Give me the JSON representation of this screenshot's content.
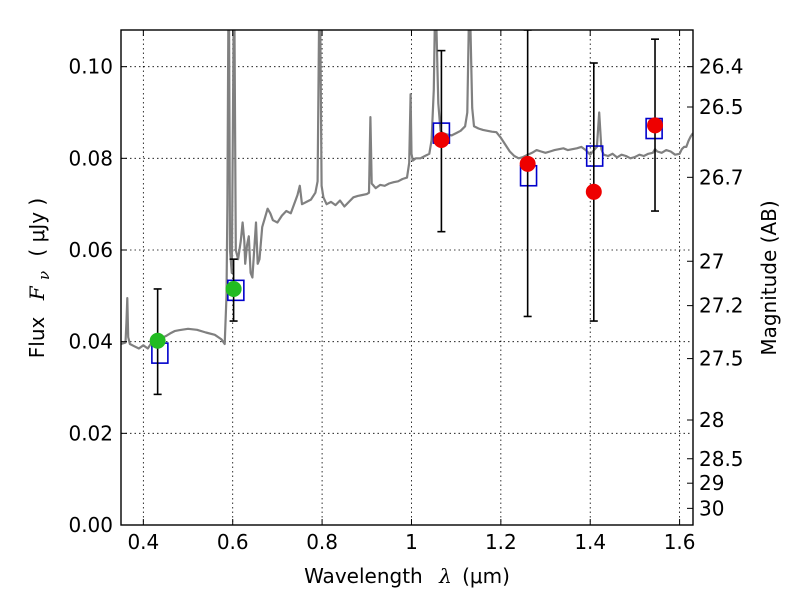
{
  "chart_data": {
    "type": "scatter",
    "xlabel": "Wavelength",
    "xlabel_math": "λ",
    "xlabel_unit": "(μm)",
    "ylabel": "Flux",
    "ylabel_math": "F",
    "ylabel_sub": "ν",
    "ylabel_unit": "( μJy )",
    "y2label": "Magnitude (AB)",
    "xlim": [
      0.35,
      1.63
    ],
    "ylim": [
      0.0,
      0.108
    ],
    "grid": true,
    "x_ticks": [
      0.4,
      0.6,
      0.8,
      1.0,
      1.2,
      1.4,
      1.6
    ],
    "x_tick_labels": [
      "0.4",
      "0.6",
      "0.8",
      "1",
      "1.2",
      "1.4",
      "1.6"
    ],
    "y_ticks": [
      0.0,
      0.02,
      0.04,
      0.06,
      0.08,
      0.1
    ],
    "y_tick_labels": [
      "0.00",
      "0.02",
      "0.04",
      "0.06",
      "0.08",
      "0.10"
    ],
    "y2_ticks": [
      {
        "label": "26.4",
        "mag": 26.4
      },
      {
        "label": "26.5",
        "mag": 26.5
      },
      {
        "label": "26.7",
        "mag": 26.7
      },
      {
        "label": "27",
        "mag": 27.0
      },
      {
        "label": "27.2",
        "mag": 27.2
      },
      {
        "label": "27.5",
        "mag": 27.5
      },
      {
        "label": "28",
        "mag": 28.0
      },
      {
        "label": "28.5",
        "mag": 28.5
      },
      {
        "label": "29",
        "mag": 29.0
      },
      {
        "label": "30",
        "mag": 30.0
      }
    ],
    "colors": {
      "spectrum": "#808080",
      "model_box": "#0000cc",
      "green_point": "#22bb22",
      "red_point": "#ee0000",
      "errorbar": "#000000",
      "grid": "#000000"
    },
    "series": [
      {
        "kind": "spectrum",
        "points": [
          [
            0.35,
            0.0395
          ],
          [
            0.36,
            0.0398
          ],
          [
            0.362,
            0.044
          ],
          [
            0.364,
            0.0495
          ],
          [
            0.366,
            0.041
          ],
          [
            0.37,
            0.0395
          ],
          [
            0.38,
            0.039
          ],
          [
            0.39,
            0.0385
          ],
          [
            0.4,
            0.0392
          ],
          [
            0.41,
            0.0385
          ],
          [
            0.42,
            0.04
          ],
          [
            0.43,
            0.0405
          ],
          [
            0.44,
            0.0408
          ],
          [
            0.45,
            0.0412
          ],
          [
            0.46,
            0.0418
          ],
          [
            0.47,
            0.0423
          ],
          [
            0.48,
            0.0425
          ],
          [
            0.5,
            0.0428
          ],
          [
            0.52,
            0.0426
          ],
          [
            0.54,
            0.042
          ],
          [
            0.56,
            0.0415
          ],
          [
            0.575,
            0.0405
          ],
          [
            0.582,
            0.0395
          ],
          [
            0.586,
            0.05
          ],
          [
            0.588,
            0.07
          ],
          [
            0.59,
            0.108
          ],
          [
            0.592,
            0.108
          ],
          [
            0.594,
            0.06
          ],
          [
            0.598,
            0.055
          ],
          [
            0.602,
            0.108
          ],
          [
            0.604,
            0.108
          ],
          [
            0.607,
            0.06
          ],
          [
            0.612,
            0.058
          ],
          [
            0.618,
            0.062
          ],
          [
            0.622,
            0.066
          ],
          [
            0.626,
            0.062
          ],
          [
            0.628,
            0.057
          ],
          [
            0.632,
            0.061
          ],
          [
            0.636,
            0.063
          ],
          [
            0.64,
            0.055
          ],
          [
            0.644,
            0.054
          ],
          [
            0.648,
            0.06
          ],
          [
            0.652,
            0.066
          ],
          [
            0.656,
            0.057
          ],
          [
            0.66,
            0.058
          ],
          [
            0.666,
            0.065
          ],
          [
            0.672,
            0.067
          ],
          [
            0.678,
            0.069
          ],
          [
            0.684,
            0.068
          ],
          [
            0.69,
            0.0665
          ],
          [
            0.7,
            0.066
          ],
          [
            0.71,
            0.0675
          ],
          [
            0.72,
            0.0685
          ],
          [
            0.73,
            0.068
          ],
          [
            0.745,
            0.072
          ],
          [
            0.75,
            0.074
          ],
          [
            0.755,
            0.07
          ],
          [
            0.765,
            0.0705
          ],
          [
            0.775,
            0.071
          ],
          [
            0.785,
            0.0725
          ],
          [
            0.79,
            0.075
          ],
          [
            0.793,
            0.108
          ],
          [
            0.796,
            0.108
          ],
          [
            0.799,
            0.074
          ],
          [
            0.803,
            0.0715
          ],
          [
            0.81,
            0.07
          ],
          [
            0.82,
            0.0705
          ],
          [
            0.83,
            0.0698
          ],
          [
            0.84,
            0.0708
          ],
          [
            0.85,
            0.0695
          ],
          [
            0.86,
            0.0705
          ],
          [
            0.87,
            0.0715
          ],
          [
            0.88,
            0.0718
          ],
          [
            0.89,
            0.072
          ],
          [
            0.9,
            0.0722
          ],
          [
            0.905,
            0.0725
          ],
          [
            0.908,
            0.089
          ],
          [
            0.911,
            0.0745
          ],
          [
            0.92,
            0.0735
          ],
          [
            0.93,
            0.0742
          ],
          [
            0.94,
            0.074
          ],
          [
            0.95,
            0.0745
          ],
          [
            0.96,
            0.0748
          ],
          [
            0.97,
            0.075
          ],
          [
            0.98,
            0.0755
          ],
          [
            0.99,
            0.0758
          ],
          [
            0.995,
            0.079
          ],
          [
            0.998,
            0.094
          ],
          [
            1.0,
            0.081
          ],
          [
            1.003,
            0.0795
          ],
          [
            1.01,
            0.08
          ],
          [
            1.02,
            0.08
          ],
          [
            1.03,
            0.0805
          ],
          [
            1.04,
            0.081
          ],
          [
            1.045,
            0.084
          ],
          [
            1.05,
            0.095
          ],
          [
            1.052,
            0.108
          ],
          [
            1.056,
            0.108
          ],
          [
            1.06,
            0.092
          ],
          [
            1.065,
            0.086
          ],
          [
            1.07,
            0.0855
          ],
          [
            1.08,
            0.0852
          ],
          [
            1.09,
            0.085
          ],
          [
            1.1,
            0.0855
          ],
          [
            1.11,
            0.086
          ],
          [
            1.12,
            0.087
          ],
          [
            1.125,
            0.09
          ],
          [
            1.128,
            0.108
          ],
          [
            1.132,
            0.108
          ],
          [
            1.136,
            0.091
          ],
          [
            1.14,
            0.087
          ],
          [
            1.15,
            0.0865
          ],
          [
            1.16,
            0.0862
          ],
          [
            1.17,
            0.086
          ],
          [
            1.18,
            0.0858
          ],
          [
            1.19,
            0.0857
          ],
          [
            1.2,
            0.0845
          ],
          [
            1.21,
            0.083
          ],
          [
            1.22,
            0.0815
          ],
          [
            1.23,
            0.0805
          ],
          [
            1.24,
            0.08
          ],
          [
            1.25,
            0.0803
          ],
          [
            1.26,
            0.0808
          ],
          [
            1.27,
            0.0812
          ],
          [
            1.28,
            0.0818
          ],
          [
            1.29,
            0.0815
          ],
          [
            1.3,
            0.0812
          ],
          [
            1.31,
            0.0815
          ],
          [
            1.32,
            0.0818
          ],
          [
            1.33,
            0.082
          ],
          [
            1.34,
            0.0822
          ],
          [
            1.35,
            0.0818
          ],
          [
            1.36,
            0.082
          ],
          [
            1.37,
            0.0822
          ],
          [
            1.38,
            0.0825
          ],
          [
            1.39,
            0.0818
          ],
          [
            1.4,
            0.0808
          ],
          [
            1.41,
            0.082
          ],
          [
            1.415,
            0.0825
          ],
          [
            1.42,
            0.09
          ],
          [
            1.425,
            0.082
          ],
          [
            1.43,
            0.0808
          ],
          [
            1.44,
            0.0805
          ],
          [
            1.45,
            0.081
          ],
          [
            1.46,
            0.0802
          ],
          [
            1.47,
            0.0808
          ],
          [
            1.48,
            0.0805
          ],
          [
            1.49,
            0.08
          ],
          [
            1.5,
            0.0803
          ],
          [
            1.51,
            0.0808
          ],
          [
            1.52,
            0.0805
          ],
          [
            1.53,
            0.081
          ],
          [
            1.54,
            0.0812
          ],
          [
            1.545,
            0.082
          ],
          [
            1.55,
            0.0815
          ],
          [
            1.56,
            0.0812
          ],
          [
            1.57,
            0.0818
          ],
          [
            1.58,
            0.0815
          ],
          [
            1.59,
            0.0808
          ],
          [
            1.6,
            0.081
          ],
          [
            1.605,
            0.082
          ],
          [
            1.61,
            0.0825
          ],
          [
            1.615,
            0.0825
          ],
          [
            1.62,
            0.0838
          ],
          [
            1.625,
            0.0848
          ],
          [
            1.63,
            0.0855
          ]
        ]
      },
      {
        "kind": "model-box",
        "points": [
          [
            0.437,
            0.0375
          ],
          [
            0.607,
            0.0512
          ],
          [
            1.067,
            0.0855
          ],
          [
            1.262,
            0.0762
          ],
          [
            1.41,
            0.0805
          ],
          [
            1.543,
            0.0865
          ]
        ]
      },
      {
        "kind": "observed-green",
        "points": [
          {
            "x": 0.432,
            "y": 0.0402,
            "y_low": 0.0285,
            "y_high": 0.0515
          },
          {
            "x": 0.602,
            "y": 0.0515,
            "y_low": 0.0445,
            "y_high": 0.058
          }
        ]
      },
      {
        "kind": "observed-red",
        "points": [
          {
            "x": 1.067,
            "y": 0.084,
            "y_low": 0.064,
            "y_high": 0.1035
          },
          {
            "x": 1.26,
            "y": 0.0788,
            "y_low": 0.0455,
            "y_high": 0.108
          },
          {
            "x": 1.408,
            "y": 0.0727,
            "y_low": 0.0445,
            "y_high": 0.1008
          },
          {
            "x": 1.545,
            "y": 0.0872,
            "y_low": 0.0685,
            "y_high": 0.106
          }
        ]
      }
    ]
  }
}
